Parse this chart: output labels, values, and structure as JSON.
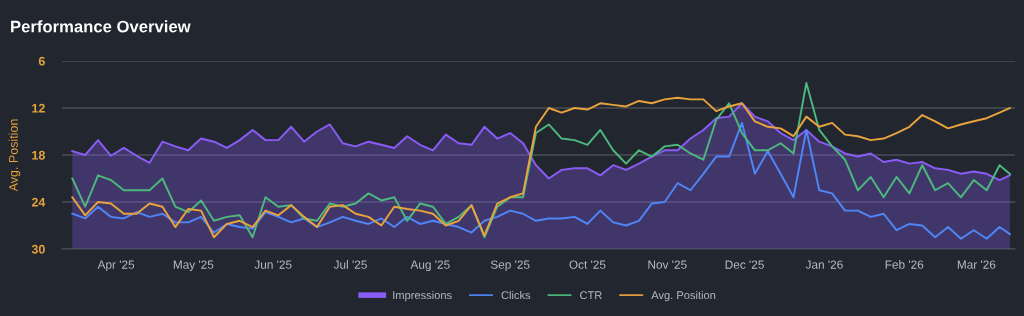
{
  "chart_data": {
    "type": "line",
    "title": "Performance Overview",
    "ylabel": "Avg. Position",
    "x": [
      "2025-03-15",
      "2025-03-20",
      "2025-03-25",
      "2025-03-30",
      "2025-04-04",
      "2025-04-09",
      "2025-04-14",
      "2025-04-19",
      "2025-04-24",
      "2025-04-29",
      "2025-05-04",
      "2025-05-09",
      "2025-05-14",
      "2025-05-19",
      "2025-05-24",
      "2025-05-29",
      "2025-06-03",
      "2025-06-08",
      "2025-06-13",
      "2025-06-18",
      "2025-06-23",
      "2025-06-28",
      "2025-07-03",
      "2025-07-08",
      "2025-07-13",
      "2025-07-18",
      "2025-07-23",
      "2025-07-28",
      "2025-08-02",
      "2025-08-07",
      "2025-08-12",
      "2025-08-17",
      "2025-08-22",
      "2025-08-27",
      "2025-09-01",
      "2025-09-06",
      "2025-09-11",
      "2025-09-16",
      "2025-09-21",
      "2025-09-26",
      "2025-10-01",
      "2025-10-06",
      "2025-10-11",
      "2025-10-16",
      "2025-10-21",
      "2025-10-26",
      "2025-10-31",
      "2025-11-05",
      "2025-11-10",
      "2025-11-15",
      "2025-11-20",
      "2025-11-25",
      "2025-11-30",
      "2025-12-05",
      "2025-12-10",
      "2025-12-15",
      "2025-12-20",
      "2025-12-25",
      "2025-12-30",
      "2026-01-04",
      "2026-01-09",
      "2026-01-14",
      "2026-01-19",
      "2026-01-24",
      "2026-01-29",
      "2026-02-03",
      "2026-02-08",
      "2026-02-13",
      "2026-02-18",
      "2026-02-23",
      "2026-02-28",
      "2026-03-05",
      "2026-03-10",
      "2026-03-14"
    ],
    "series": [
      {
        "name": "Impressions",
        "type": "area",
        "color": "#8a5cf6",
        "values": [
          17.5,
          18.0,
          16.1,
          18.1,
          17.1,
          18.1,
          19.0,
          16.3,
          16.9,
          17.4,
          15.9,
          16.3,
          17.1,
          16.1,
          14.8,
          16.1,
          16.1,
          14.4,
          16.3,
          15.0,
          14.1,
          16.5,
          16.9,
          16.3,
          16.7,
          17.1,
          15.6,
          16.7,
          17.4,
          15.4,
          16.5,
          16.7,
          14.4,
          15.9,
          15.2,
          16.5,
          19.3,
          21.0,
          19.9,
          19.7,
          19.7,
          20.6,
          19.3,
          19.9,
          19.1,
          18.2,
          17.4,
          17.4,
          15.9,
          14.8,
          13.3,
          13.1,
          11.4,
          13.1,
          13.7,
          15.2,
          16.1,
          14.8,
          16.3,
          16.9,
          17.8,
          18.2,
          17.8,
          18.9,
          18.6,
          19.1,
          18.9,
          19.7,
          19.9,
          20.4,
          20.1,
          20.4,
          21.2,
          20.6
        ]
      },
      {
        "name": "Clicks",
        "color": "#4f86f7",
        "values": [
          25.5,
          26.1,
          24.6,
          25.9,
          26.1,
          25.3,
          25.9,
          25.5,
          26.6,
          26.6,
          25.9,
          27.9,
          26.8,
          27.2,
          27.4,
          25.3,
          25.9,
          26.6,
          26.1,
          27.2,
          26.6,
          25.9,
          26.4,
          26.8,
          26.1,
          27.2,
          25.9,
          26.8,
          26.4,
          26.8,
          27.2,
          27.9,
          26.4,
          25.9,
          25.1,
          25.5,
          26.4,
          26.1,
          26.1,
          25.9,
          26.8,
          25.1,
          26.6,
          27.0,
          26.4,
          24.2,
          24.0,
          21.6,
          22.5,
          20.4,
          18.2,
          18.2,
          13.9,
          20.4,
          17.5,
          20.4,
          23.4,
          14.8,
          22.5,
          22.9,
          25.1,
          25.1,
          25.9,
          25.5,
          27.6,
          26.8,
          27.0,
          28.5,
          27.2,
          28.7,
          27.6,
          28.7,
          27.2,
          28.1
        ]
      },
      {
        "name": "CTR",
        "color": "#4cb87e",
        "values": [
          21.0,
          24.6,
          20.6,
          21.2,
          22.5,
          22.5,
          22.5,
          21.0,
          24.6,
          25.3,
          23.8,
          26.4,
          25.9,
          25.7,
          28.5,
          23.4,
          24.6,
          24.4,
          26.1,
          26.4,
          24.2,
          24.6,
          24.2,
          22.9,
          23.8,
          23.4,
          26.4,
          24.2,
          24.6,
          26.8,
          25.9,
          24.4,
          28.5,
          24.6,
          23.4,
          23.4,
          15.2,
          14.1,
          15.9,
          16.1,
          16.7,
          14.8,
          17.4,
          19.1,
          17.4,
          18.2,
          16.9,
          16.7,
          17.8,
          18.6,
          13.5,
          11.4,
          15.2,
          17.4,
          17.4,
          16.5,
          17.8,
          8.8,
          14.8,
          16.9,
          18.6,
          22.5,
          20.8,
          23.4,
          20.8,
          22.9,
          19.3,
          22.5,
          21.6,
          23.4,
          21.2,
          22.5,
          19.3,
          20.4
        ]
      },
      {
        "name": "Avg. Position",
        "color": "#e8a33d",
        "values": [
          23.4,
          25.7,
          24.0,
          24.2,
          25.5,
          25.5,
          24.2,
          24.6,
          27.2,
          24.9,
          25.1,
          28.5,
          26.8,
          26.4,
          27.2,
          25.1,
          25.7,
          24.4,
          25.9,
          27.2,
          24.6,
          24.4,
          25.5,
          25.9,
          27.0,
          24.6,
          24.9,
          25.1,
          25.5,
          27.0,
          26.4,
          24.4,
          28.3,
          24.2,
          23.4,
          22.9,
          14.4,
          12.0,
          12.6,
          12.0,
          12.2,
          11.4,
          11.6,
          11.8,
          11.1,
          11.4,
          10.9,
          10.7,
          10.9,
          10.9,
          12.4,
          11.8,
          11.4,
          13.7,
          14.4,
          14.6,
          15.6,
          13.1,
          14.4,
          13.9,
          15.4,
          15.6,
          16.1,
          15.9,
          15.2,
          14.4,
          12.9,
          13.7,
          14.6,
          14.1,
          13.7,
          13.3,
          12.6,
          12.0
        ]
      }
    ],
    "xlim": [
      "2025-03-11",
      "2026-03-16"
    ],
    "xticks": [
      {
        "value": "2025-04-01",
        "label": "Apr '25"
      },
      {
        "value": "2025-05-01",
        "label": "May '25"
      },
      {
        "value": "2025-06-01",
        "label": "Jun '25"
      },
      {
        "value": "2025-07-01",
        "label": "Jul '25"
      },
      {
        "value": "2025-08-01",
        "label": "Aug '25"
      },
      {
        "value": "2025-09-01",
        "label": "Sep '25"
      },
      {
        "value": "2025-10-01",
        "label": "Oct '25"
      },
      {
        "value": "2025-11-01",
        "label": "Nov '25"
      },
      {
        "value": "2025-12-01",
        "label": "Dec '25"
      },
      {
        "value": "2026-01-01",
        "label": "Jan '26"
      },
      {
        "value": "2026-02-01",
        "label": "Feb '26"
      },
      {
        "value": "2026-03-01",
        "label": "Mar '26"
      }
    ],
    "ylim": [
      30,
      6
    ],
    "yticks": [
      6,
      12,
      18,
      24,
      30
    ],
    "grid": "y",
    "legend": "bottom",
    "marker": "none",
    "line_style": "solid"
  }
}
